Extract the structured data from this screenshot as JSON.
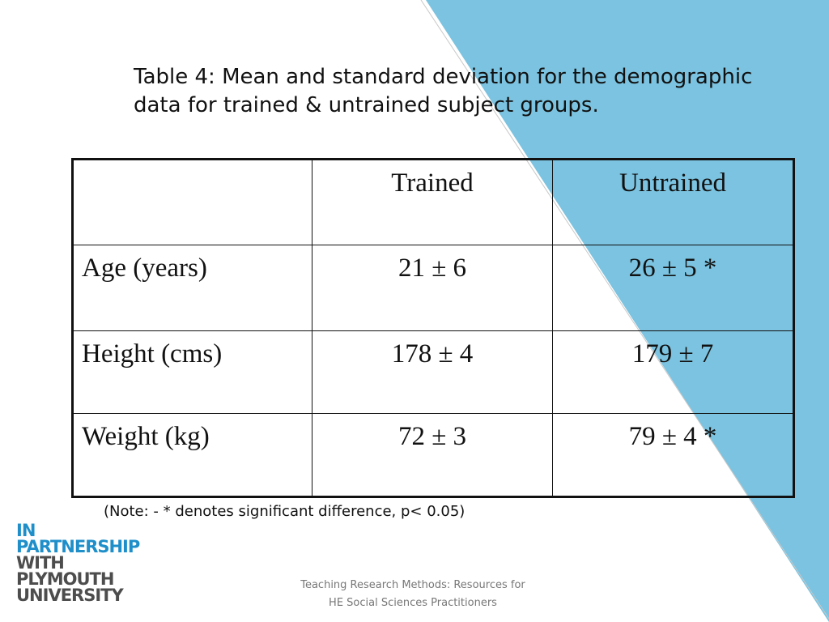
{
  "slide": {
    "title": "Table 4: Mean and standard deviation for the demographic data for trained & untrained subject groups.",
    "accent_color": "#7bc3e0",
    "table": {
      "headers": [
        "",
        "Trained",
        "Untrained"
      ],
      "rows": [
        {
          "label": "Age (years)",
          "trained": "21 ± 6",
          "untrained": "26 ± 5 *"
        },
        {
          "label": "Height (cms)",
          "trained": "178 ± 4",
          "untrained": "179 ± 7"
        },
        {
          "label": "Weight (kg)",
          "trained": "72 ± 3",
          "untrained": "79 ± 4 *"
        }
      ]
    },
    "note": "(Note: - * denotes significant difference, p< 0.05)",
    "footer_line1": "Teaching Research Methods: Resources for",
    "footer_line2": "HE Social Sciences Practitioners"
  },
  "logo": {
    "lines": [
      "IN",
      "PARTNERSHIP",
      "WITH",
      "PLYMOUTH",
      "UNIVERSITY"
    ],
    "blue_color": "#1f8fc9",
    "gray_color": "#4d4d4d"
  }
}
